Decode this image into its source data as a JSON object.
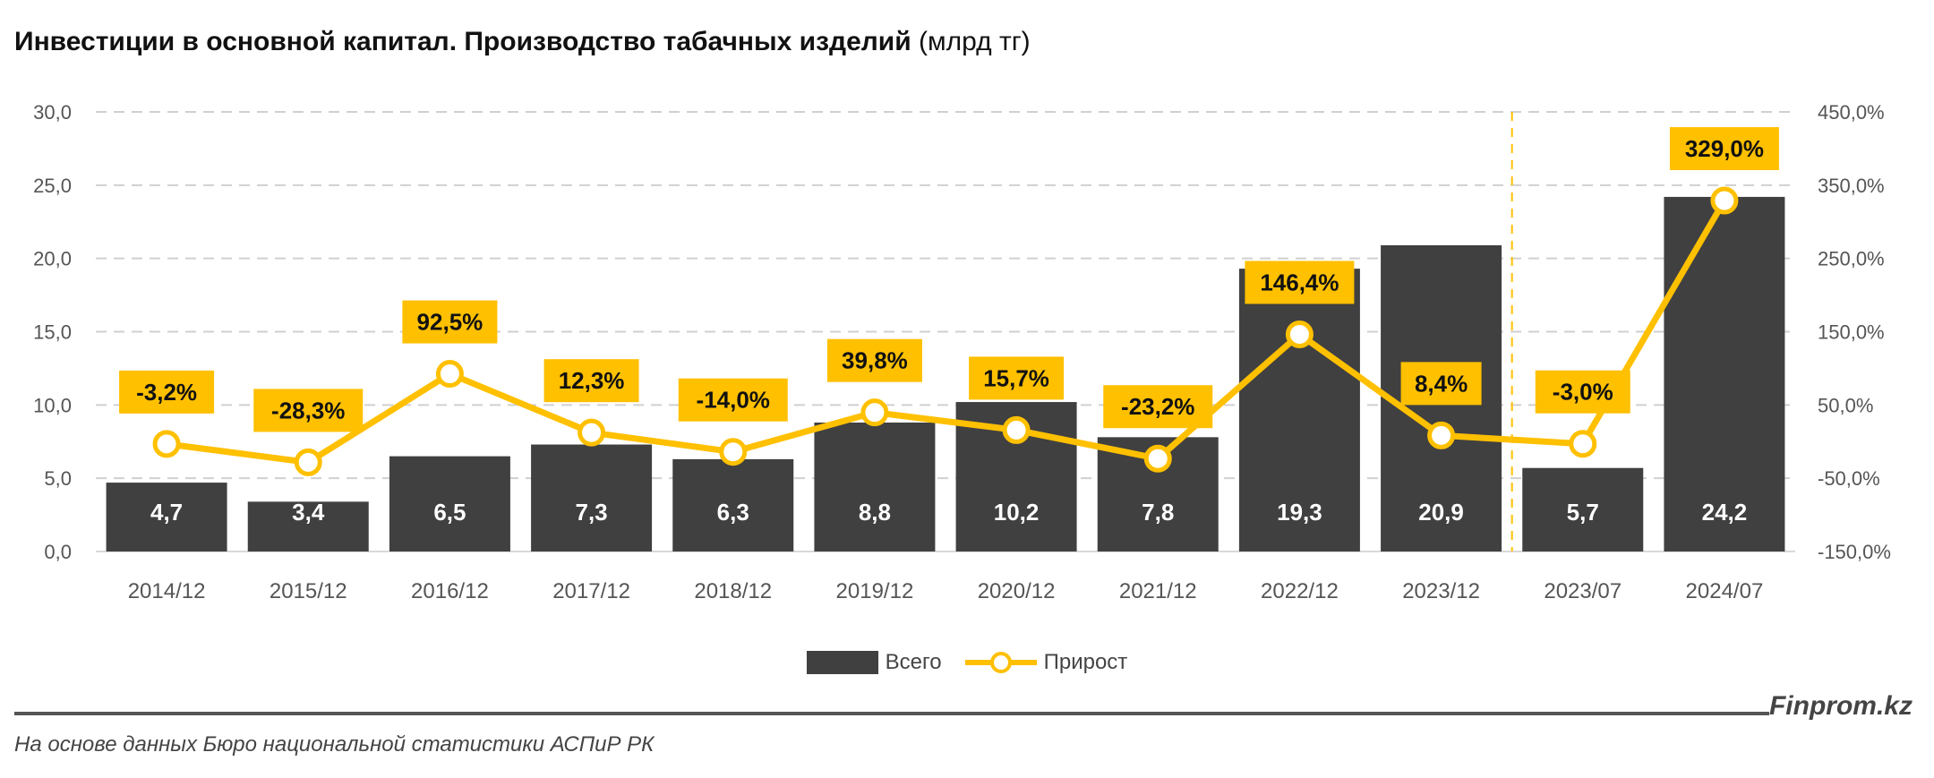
{
  "title": {
    "bold": "Инвестиции в основной капитал. Производство табачных изделий",
    "unit": "(млрд тг)"
  },
  "chart_data": {
    "type": "bar+line",
    "categories": [
      "2014/12",
      "2015/12",
      "2016/12",
      "2017/12",
      "2018/12",
      "2019/12",
      "2020/12",
      "2021/12",
      "2022/12",
      "2023/12",
      "2023/07",
      "2024/07"
    ],
    "series": [
      {
        "name": "Всего",
        "type": "bar",
        "axis": "left",
        "values": [
          4.7,
          3.4,
          6.5,
          7.3,
          6.3,
          8.8,
          10.2,
          7.8,
          19.3,
          20.9,
          5.7,
          24.2
        ],
        "labels": [
          "4,7",
          "3,4",
          "6,5",
          "7,3",
          "6,3",
          "8,8",
          "10,2",
          "7,8",
          "19,3",
          "20,9",
          "5,7",
          "24,2"
        ],
        "color": "#404040"
      },
      {
        "name": "Прирост",
        "type": "line",
        "axis": "right",
        "values": [
          -3.2,
          -28.3,
          92.5,
          12.3,
          -14.0,
          39.8,
          15.7,
          -23.2,
          146.4,
          8.4,
          -3.0,
          329.0
        ],
        "labels": [
          "-3,2%",
          "-28,3%",
          "92,5%",
          "12,3%",
          "-14,0%",
          "39,8%",
          "15,7%",
          "-23,2%",
          "146,4%",
          "8,4%",
          "-3,0%",
          "329,0%"
        ],
        "color": "#FFC000"
      }
    ],
    "y_left": {
      "range": [
        0,
        30
      ],
      "ticks": [
        "0,0",
        "5,0",
        "10,0",
        "15,0",
        "20,0",
        "25,0",
        "30,0"
      ]
    },
    "y_right": {
      "range": [
        -150,
        450
      ],
      "ticks": [
        "-150,0%",
        "-50,0%",
        "50,0%",
        "150,0%",
        "250,0%",
        "350,0%",
        "450,0%"
      ]
    },
    "grid": true,
    "separator_after": "2023/12",
    "legend": "bottom"
  },
  "footer": {
    "brand": "Finprom.kz",
    "source": "На основе данных Бюро национальной статистики АСПиР РК"
  }
}
